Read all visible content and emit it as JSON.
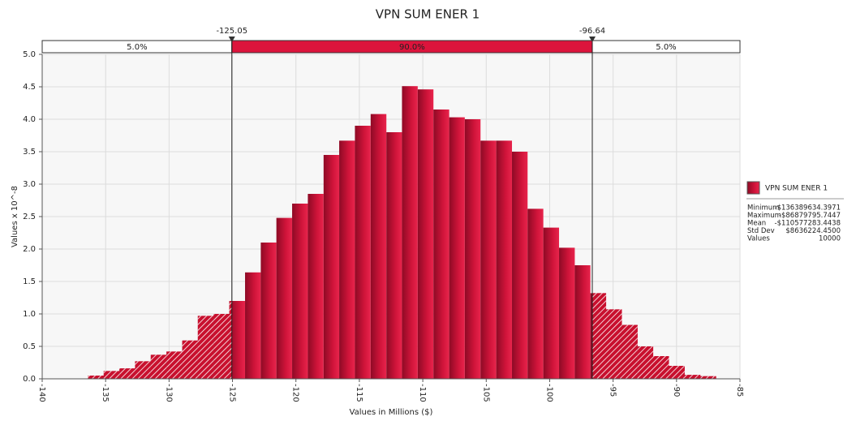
{
  "chart_data": {
    "type": "histogram",
    "title": "VPN SUM ENER 1",
    "x_label": "Values in Millions ($)",
    "y_label": "Values x 10^-8",
    "bins": [
      -136.39,
      -135.15,
      -133.91,
      -132.68,
      -131.44,
      -130.2,
      -128.96,
      -127.73,
      -126.49,
      -125.25,
      -124.01,
      -122.77,
      -121.54,
      -120.3,
      -119.06,
      -117.82,
      -116.59,
      -115.35,
      -114.11,
      -112.87,
      -111.64,
      -110.4,
      -109.16,
      -107.92,
      -106.69,
      -105.45,
      -104.21,
      -102.97,
      -101.74,
      -100.5,
      -99.26,
      -98.02,
      -96.79,
      -95.55,
      -94.31,
      -93.07,
      -91.84,
      -90.6,
      -89.36,
      -88.12,
      -86.88
    ],
    "values": [
      0.05,
      0.12,
      0.16,
      0.27,
      0.37,
      0.42,
      0.59,
      0.97,
      1.0,
      1.2,
      1.64,
      2.1,
      2.48,
      2.7,
      2.85,
      3.45,
      3.67,
      3.9,
      4.08,
      3.8,
      4.51,
      4.46,
      4.15,
      4.03,
      4.0,
      3.67,
      3.67,
      3.5,
      2.62,
      2.33,
      2.02,
      1.75,
      1.32,
      1.07,
      0.83,
      0.5,
      0.35,
      0.2,
      0.06,
      0.04
    ],
    "color": "#c8102e",
    "xlim": [
      -140,
      -85
    ],
    "xticks": [
      -140,
      -135,
      -130,
      -125,
      -120,
      -115,
      -110,
      -105,
      -100,
      -95,
      -90,
      -85
    ],
    "ylim": [
      0,
      5
    ],
    "yticks": [
      {
        "value": 0,
        "label": "0.0"
      },
      0.5,
      {
        "value": 1,
        "label": "1.0"
      },
      1.5,
      {
        "value": 2,
        "label": "2.0"
      },
      2.5,
      {
        "value": 3,
        "label": "3.0"
      },
      3.5,
      {
        "value": 4,
        "label": "4.0"
      },
      4.5,
      {
        "value": 5,
        "label": "5.0"
      }
    ],
    "grid": true,
    "delimiters": [
      -125.05,
      -96.64
    ],
    "delimiter_percents": [
      {
        "value": 5,
        "label": "5.0%"
      },
      {
        "value": 90,
        "label": "90.0%"
      },
      {
        "value": 5,
        "label": "5.0%"
      }
    ],
    "legend": {
      "name": "VPN SUM ENER 1",
      "stats": [
        [
          "Minimum",
          "-$136389634.3971"
        ],
        [
          "Maximum",
          "-$86879795.7447"
        ],
        [
          "Mean",
          "-$110577283.4438"
        ],
        [
          "Std Dev",
          "$8636224.4500"
        ],
        [
          "Values",
          "10000"
        ]
      ]
    }
  }
}
